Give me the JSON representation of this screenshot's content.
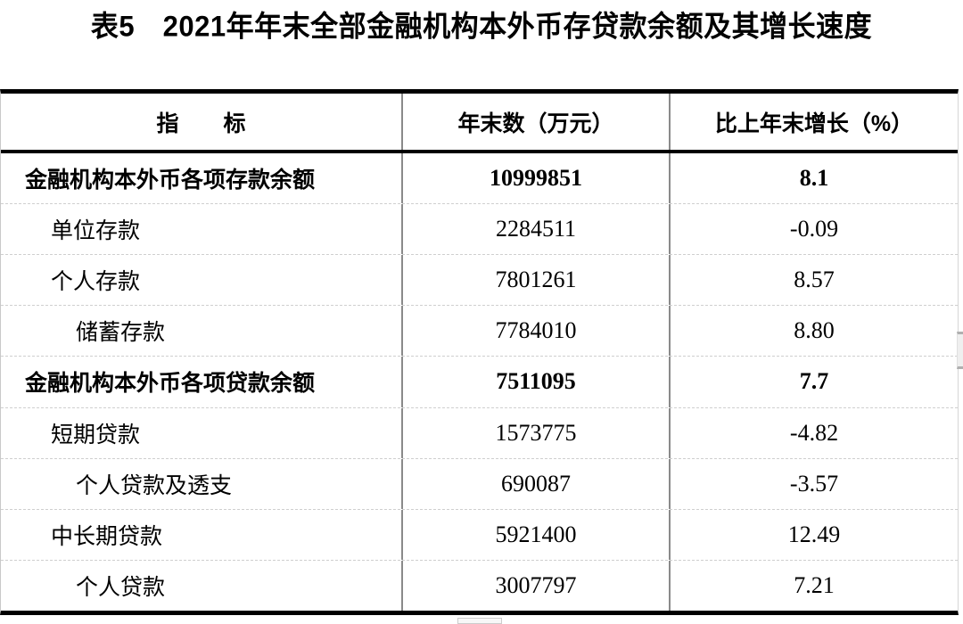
{
  "title": "表5　2021年年末全部金融机构本外币存贷款余额及其增长速度",
  "table": {
    "headers": {
      "indicator": "指　　标",
      "value": "年末数（万元）",
      "growth": "比上年末增长（%）"
    },
    "rows": [
      {
        "indicator": "金融机构本外币各项存款余额",
        "value": "10999851",
        "growth": "8.1"
      },
      {
        "indicator": "单位存款",
        "value": "2284511",
        "growth": "-0.09"
      },
      {
        "indicator": "个人存款",
        "value": "7801261",
        "growth": "8.57"
      },
      {
        "indicator": "储蓄存款",
        "value": "7784010",
        "growth": "8.80"
      },
      {
        "indicator": "金融机构本外币各项贷款余额",
        "value": "7511095",
        "growth": "7.7"
      },
      {
        "indicator": "短期贷款",
        "value": "1573775",
        "growth": "-4.82"
      },
      {
        "indicator": "个人贷款及透支",
        "value": "690087",
        "growth": "-3.57"
      },
      {
        "indicator": "中长期贷款",
        "value": "5921400",
        "growth": "12.49"
      },
      {
        "indicator": "个人贷款",
        "value": "3007797",
        "growth": "7.21"
      }
    ]
  }
}
